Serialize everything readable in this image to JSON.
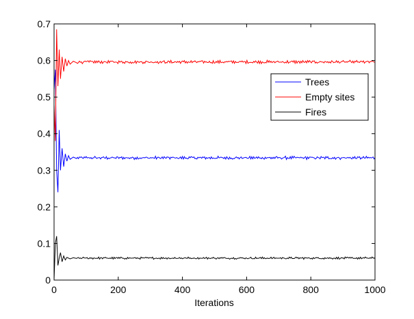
{
  "chart_data": {
    "type": "line",
    "title": "",
    "xlabel": "Iterations",
    "ylabel": "",
    "xlim": [
      0,
      1000
    ],
    "ylim": [
      0,
      0.7
    ],
    "xticks": [
      0,
      200,
      400,
      600,
      800,
      1000
    ],
    "yticks": [
      0,
      0.1,
      0.2,
      0.3,
      0.4,
      0.5,
      0.6,
      0.7
    ],
    "grid": false,
    "legend_position": "top-right",
    "series": [
      {
        "name": "Trees",
        "color": "#0000ff",
        "transient": [
          [
            0,
            0.52
          ],
          [
            4,
            0.575
          ],
          [
            8,
            0.3
          ],
          [
            12,
            0.24
          ],
          [
            16,
            0.41
          ],
          [
            20,
            0.3
          ],
          [
            25,
            0.36
          ],
          [
            30,
            0.31
          ],
          [
            35,
            0.345
          ],
          [
            40,
            0.325
          ],
          [
            45,
            0.34
          ],
          [
            50,
            0.33
          ],
          [
            60,
            0.336
          ],
          [
            70,
            0.332
          ]
        ],
        "equilibrium": 0.334,
        "noise": 0.003
      },
      {
        "name": "Empty sites",
        "color": "#ff0000",
        "transient": [
          [
            0,
            0.48
          ],
          [
            4,
            0.38
          ],
          [
            8,
            0.685
          ],
          [
            12,
            0.53
          ],
          [
            16,
            0.63
          ],
          [
            20,
            0.55
          ],
          [
            25,
            0.61
          ],
          [
            30,
            0.57
          ],
          [
            35,
            0.605
          ],
          [
            40,
            0.585
          ],
          [
            45,
            0.6
          ],
          [
            50,
            0.59
          ],
          [
            60,
            0.598
          ],
          [
            70,
            0.594
          ]
        ],
        "equilibrium": 0.596,
        "noise": 0.003
      },
      {
        "name": "Fires",
        "color": "#000000",
        "transient": [
          [
            0,
            0.0
          ],
          [
            4,
            0.1
          ],
          [
            8,
            0.12
          ],
          [
            12,
            0.04
          ],
          [
            16,
            0.06
          ],
          [
            20,
            0.075
          ],
          [
            25,
            0.05
          ],
          [
            30,
            0.066
          ],
          [
            35,
            0.055
          ],
          [
            40,
            0.062
          ],
          [
            50,
            0.058
          ],
          [
            60,
            0.061
          ],
          [
            70,
            0.059
          ]
        ],
        "equilibrium": 0.06,
        "noise": 0.002
      }
    ]
  }
}
